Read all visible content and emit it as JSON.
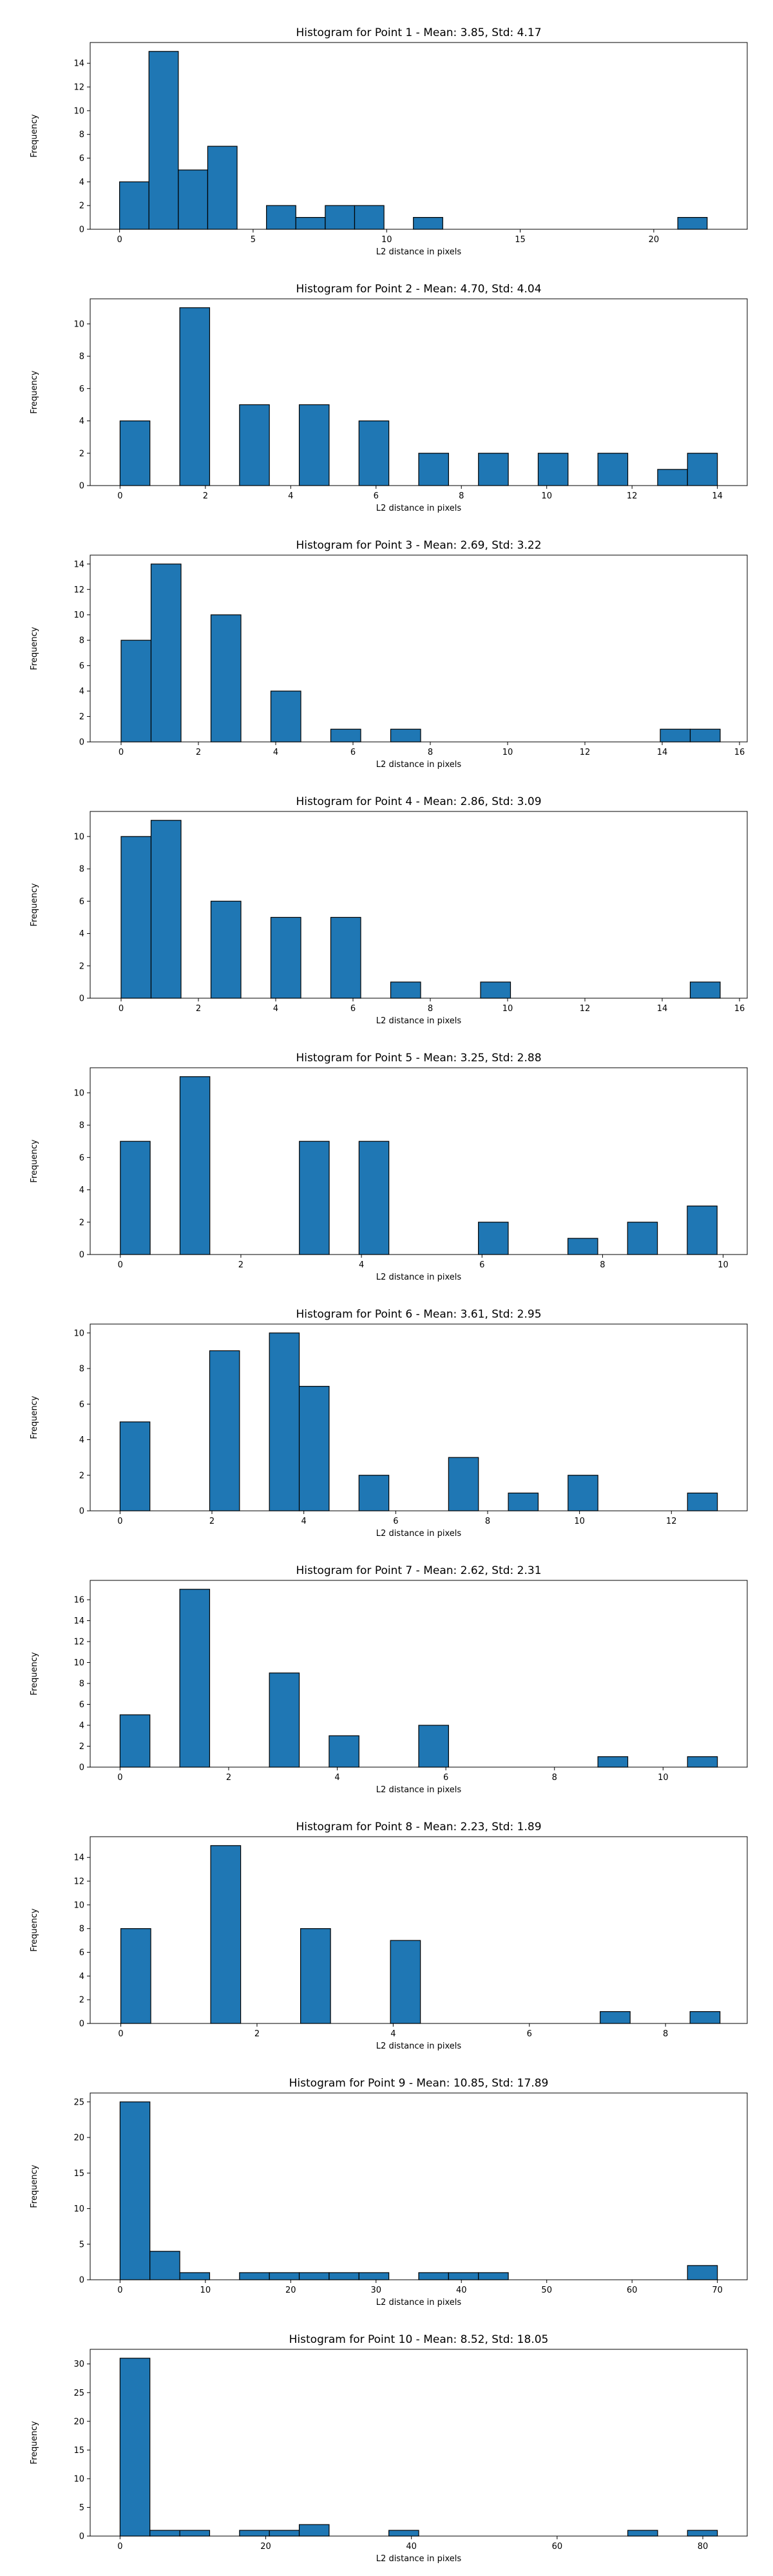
{
  "chart_data": [
    {
      "type": "bar",
      "title": "Histogram for Point 1 - Mean: 3.85, Std: 4.17",
      "xlabel": "L2 distance in pixels",
      "ylabel": "Frequency",
      "xlim": [
        -1.1,
        23.5
      ],
      "ylim": [
        0,
        15.75
      ],
      "xticks": [
        0,
        5,
        10,
        15,
        20
      ],
      "yticks": [
        0,
        2,
        4,
        6,
        8,
        10,
        12,
        14
      ],
      "bin_edges": [
        0.0,
        1.1,
        2.2,
        3.3,
        4.4,
        5.5,
        6.6,
        7.7,
        8.8,
        9.9,
        11.0,
        12.1,
        13.2,
        14.3,
        15.4,
        16.5,
        17.6,
        18.7,
        19.8,
        20.9,
        22.0
      ],
      "counts": [
        4,
        15,
        5,
        7,
        0,
        2,
        1,
        2,
        2,
        0,
        1,
        0,
        0,
        0,
        0,
        0,
        0,
        0,
        0,
        1
      ],
      "grid": false,
      "color": "#1f77b4"
    },
    {
      "type": "bar",
      "title": "Histogram for Point 2 - Mean: 4.70, Std: 4.04",
      "xlabel": "L2 distance in pixels",
      "ylabel": "Frequency",
      "xlim": [
        -0.7,
        14.7
      ],
      "ylim": [
        0,
        11.55
      ],
      "xticks": [
        0,
        2,
        4,
        6,
        8,
        10,
        12,
        14
      ],
      "yticks": [
        0,
        2,
        4,
        6,
        8,
        10
      ],
      "bin_edges": [
        0.0,
        0.7,
        1.4,
        2.1,
        2.8,
        3.5,
        4.2,
        4.9,
        5.6,
        6.3,
        7.0,
        7.7,
        8.4,
        9.1,
        9.8,
        10.5,
        11.2,
        11.9,
        12.6,
        13.3,
        14.0
      ],
      "counts": [
        4,
        0,
        11,
        0,
        5,
        0,
        5,
        0,
        4,
        0,
        2,
        0,
        2,
        0,
        2,
        0,
        2,
        0,
        1,
        2
      ],
      "grid": false,
      "color": "#1f77b4"
    },
    {
      "type": "bar",
      "title": "Histogram for Point 3 - Mean: 2.69, Std: 3.22",
      "xlabel": "L2 distance in pixels",
      "ylabel": "Frequency",
      "xlim": [
        -0.8,
        16.2
      ],
      "ylim": [
        0,
        14.7
      ],
      "xticks": [
        0,
        2,
        4,
        6,
        8,
        10,
        12,
        14,
        16
      ],
      "yticks": [
        0,
        2,
        4,
        6,
        8,
        10,
        12,
        14
      ],
      "bin_edges": [
        0.0,
        0.775,
        1.55,
        2.325,
        3.1,
        3.875,
        4.65,
        5.425,
        6.2,
        6.975,
        7.75,
        8.525,
        9.3,
        10.075,
        10.85,
        11.625,
        12.4,
        13.175,
        13.95,
        14.725,
        15.5
      ],
      "counts": [
        8,
        14,
        0,
        10,
        0,
        4,
        0,
        1,
        0,
        1,
        0,
        0,
        0,
        0,
        0,
        0,
        0,
        0,
        1,
        1
      ],
      "grid": false,
      "color": "#1f77b4"
    },
    {
      "type": "bar",
      "title": "Histogram for Point 4 - Mean: 2.86, Std: 3.09",
      "xlabel": "L2 distance in pixels",
      "ylabel": "Frequency",
      "xlim": [
        -0.8,
        16.2
      ],
      "ylim": [
        0,
        11.55
      ],
      "xticks": [
        0,
        2,
        4,
        6,
        8,
        10,
        12,
        14,
        16
      ],
      "yticks": [
        0,
        2,
        4,
        6,
        8,
        10
      ],
      "bin_edges": [
        0.0,
        0.775,
        1.55,
        2.325,
        3.1,
        3.875,
        4.65,
        5.425,
        6.2,
        6.975,
        7.75,
        8.525,
        9.3,
        10.075,
        10.85,
        11.625,
        12.4,
        13.175,
        13.95,
        14.725,
        15.5
      ],
      "counts": [
        10,
        11,
        0,
        6,
        0,
        5,
        0,
        5,
        0,
        1,
        0,
        0,
        1,
        0,
        0,
        0,
        0,
        0,
        0,
        1
      ],
      "grid": false,
      "color": "#1f77b4"
    },
    {
      "type": "bar",
      "title": "Histogram for Point 5 - Mean: 3.25, Std: 2.88",
      "xlabel": "L2 distance in pixels",
      "ylabel": "Frequency",
      "xlim": [
        -0.5,
        10.4
      ],
      "ylim": [
        0,
        11.55
      ],
      "xticks": [
        0,
        2,
        4,
        6,
        8,
        10
      ],
      "yticks": [
        0,
        2,
        4,
        6,
        8,
        10
      ],
      "bin_edges": [
        0.0,
        0.495,
        0.99,
        1.485,
        1.98,
        2.475,
        2.97,
        3.465,
        3.96,
        4.455,
        4.95,
        5.445,
        5.94,
        6.435,
        6.93,
        7.425,
        7.92,
        8.415,
        8.91,
        9.405,
        9.9
      ],
      "counts": [
        7,
        0,
        11,
        0,
        0,
        0,
        7,
        0,
        7,
        0,
        0,
        0,
        2,
        0,
        0,
        1,
        0,
        2,
        0,
        3
      ],
      "grid": false,
      "color": "#1f77b4"
    },
    {
      "type": "bar",
      "title": "Histogram for Point 6 - Mean: 3.61, Std: 2.95",
      "xlabel": "L2 distance in pixels",
      "ylabel": "Frequency",
      "xlim": [
        -0.65,
        13.65
      ],
      "ylim": [
        0,
        10.5
      ],
      "xticks": [
        0,
        2,
        4,
        6,
        8,
        10,
        12
      ],
      "yticks": [
        0,
        2,
        4,
        6,
        8,
        10
      ],
      "bin_edges": [
        0.0,
        0.65,
        1.3,
        1.95,
        2.6,
        3.25,
        3.9,
        4.55,
        5.2,
        5.85,
        6.5,
        7.15,
        7.8,
        8.45,
        9.1,
        9.75,
        10.4,
        11.05,
        11.7,
        12.35,
        13.0
      ],
      "counts": [
        5,
        0,
        0,
        9,
        0,
        10,
        7,
        0,
        2,
        0,
        0,
        3,
        0,
        1,
        0,
        2,
        0,
        0,
        0,
        1
      ],
      "grid": false,
      "color": "#1f77b4"
    },
    {
      "type": "bar",
      "title": "Histogram for Point 7 - Mean: 2.62, Std: 2.31",
      "xlabel": "L2 distance in pixels",
      "ylabel": "Frequency",
      "xlim": [
        -0.55,
        11.55
      ],
      "ylim": [
        0,
        17.85
      ],
      "xticks": [
        0,
        2,
        4,
        6,
        8,
        10
      ],
      "yticks": [
        0,
        2,
        4,
        6,
        8,
        10,
        12,
        14,
        16
      ],
      "bin_edges": [
        0.0,
        0.55,
        1.1,
        1.65,
        2.2,
        2.75,
        3.3,
        3.85,
        4.4,
        4.95,
        5.5,
        6.05,
        6.6,
        7.15,
        7.7,
        8.25,
        8.8,
        9.35,
        9.9,
        10.45,
        11.0
      ],
      "counts": [
        5,
        0,
        17,
        0,
        0,
        9,
        0,
        3,
        0,
        0,
        4,
        0,
        0,
        0,
        0,
        0,
        1,
        0,
        0,
        1
      ],
      "grid": false,
      "color": "#1f77b4"
    },
    {
      "type": "bar",
      "title": "Histogram for Point 8 - Mean: 2.23, Std: 1.89",
      "xlabel": "L2 distance in pixels",
      "ylabel": "Frequency",
      "xlim": [
        -0.45,
        9.2
      ],
      "ylim": [
        0,
        15.75
      ],
      "xticks": [
        0,
        2,
        4,
        6,
        8
      ],
      "yticks": [
        0,
        2,
        4,
        6,
        8,
        10,
        12,
        14
      ],
      "bin_edges": [
        0.0,
        0.44,
        0.88,
        1.32,
        1.76,
        2.2,
        2.64,
        3.08,
        3.52,
        3.96,
        4.4,
        4.84,
        5.28,
        5.72,
        6.16,
        6.6,
        7.04,
        7.48,
        7.92,
        8.36,
        8.8
      ],
      "counts": [
        8,
        0,
        0,
        15,
        0,
        0,
        8,
        0,
        0,
        7,
        0,
        0,
        0,
        0,
        0,
        0,
        1,
        0,
        0,
        1
      ],
      "grid": false,
      "color": "#1f77b4"
    },
    {
      "type": "bar",
      "title": "Histogram for Point 9 - Mean: 10.85, Std: 17.89",
      "xlabel": "L2 distance in pixels",
      "ylabel": "Frequency",
      "xlim": [
        -3.5,
        73.5
      ],
      "ylim": [
        0,
        26.25
      ],
      "xticks": [
        0,
        10,
        20,
        30,
        40,
        50,
        60,
        70
      ],
      "yticks": [
        0,
        5,
        10,
        15,
        20,
        25
      ],
      "bin_edges": [
        0.0,
        3.5,
        7.0,
        10.5,
        14.0,
        17.5,
        21.0,
        24.5,
        28.0,
        31.5,
        35.0,
        38.5,
        42.0,
        45.5,
        49.0,
        52.5,
        56.0,
        59.5,
        63.0,
        66.5,
        70.0
      ],
      "counts": [
        25,
        4,
        1,
        0,
        1,
        1,
        1,
        1,
        1,
        0,
        1,
        1,
        1,
        0,
        0,
        0,
        0,
        0,
        0,
        2
      ],
      "grid": false,
      "color": "#1f77b4"
    },
    {
      "type": "bar",
      "title": "Histogram for Point 10 - Mean: 8.52, Std: 18.05",
      "xlabel": "L2 distance in pixels",
      "ylabel": "Frequency",
      "xlim": [
        -4.1,
        86.1
      ],
      "ylim": [
        0,
        32.55
      ],
      "xticks": [
        0,
        20,
        40,
        60,
        80
      ],
      "yticks": [
        0,
        5,
        10,
        15,
        20,
        25,
        30
      ],
      "bin_edges": [
        0.0,
        4.1,
        8.2,
        12.3,
        16.4,
        20.5,
        24.6,
        28.7,
        32.8,
        36.9,
        41.0,
        45.1,
        49.2,
        53.3,
        57.4,
        61.5,
        65.6,
        69.7,
        73.8,
        77.9,
        82.0
      ],
      "counts": [
        31,
        1,
        1,
        0,
        1,
        1,
        2,
        0,
        0,
        1,
        0,
        0,
        0,
        0,
        0,
        0,
        0,
        1,
        0,
        1
      ],
      "grid": false,
      "color": "#1f77b4"
    }
  ]
}
